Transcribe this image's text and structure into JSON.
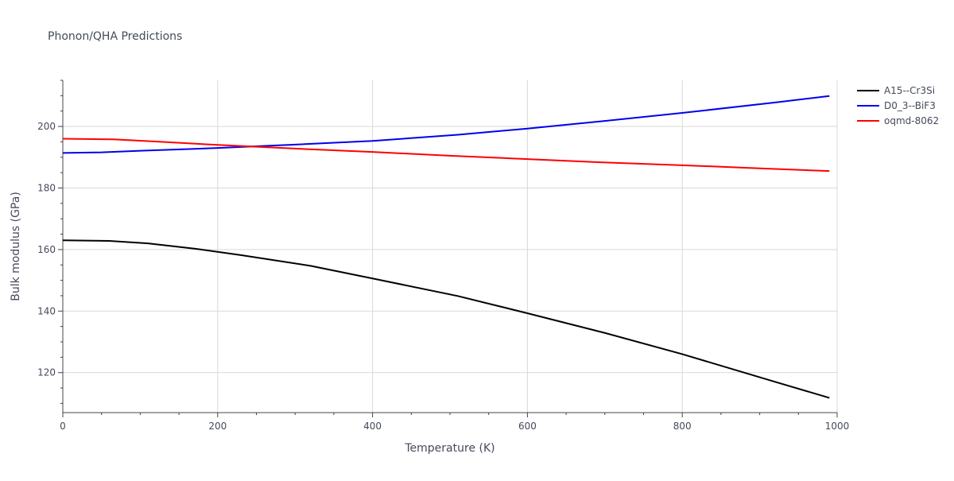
{
  "chart_data": {
    "type": "line",
    "title": "Phonon/QHA Predictions",
    "xlabel": "Temperature (K)",
    "ylabel": "Bulk modulus (GPa)",
    "xlim": [
      0,
      1000
    ],
    "ylim": [
      107,
      215
    ],
    "xticks": [
      0,
      200,
      400,
      600,
      800,
      1000
    ],
    "yticks": [
      120,
      140,
      160,
      180,
      200
    ],
    "xtick_labels": [
      "0",
      "200",
      "400",
      "600",
      "800",
      "1000"
    ],
    "ytick_labels": [
      "120",
      "140",
      "160",
      "180",
      "200"
    ],
    "grid": true,
    "legend_position": "top-right outside",
    "series": [
      {
        "name": "A15--Cr3Si",
        "color": "#000000",
        "x": [
          0,
          60,
          110,
          170,
          230,
          320,
          400,
          510,
          600,
          700,
          800,
          920,
          990
        ],
        "y": [
          163.0,
          162.8,
          162.0,
          160.3,
          158.2,
          154.7,
          150.6,
          144.9,
          139.3,
          132.9,
          126.0,
          117.0,
          111.8
        ]
      },
      {
        "name": "D0_3--BiF3",
        "color": "#0000ee",
        "x": [
          0,
          50,
          100,
          200,
          300,
          400,
          510,
          600,
          700,
          800,
          920,
          990
        ],
        "y": [
          191.4,
          191.6,
          192.1,
          193.0,
          194.1,
          195.3,
          197.3,
          199.3,
          201.8,
          204.4,
          207.8,
          209.9
        ]
      },
      {
        "name": "oqmd-8062",
        "color": "#ff0000",
        "x": [
          0,
          65,
          120,
          200,
          300,
          400,
          500,
          600,
          700,
          800,
          900,
          990
        ],
        "y": [
          196.0,
          195.8,
          195.1,
          194.0,
          192.8,
          191.7,
          190.5,
          189.4,
          188.3,
          187.4,
          186.4,
          185.5
        ]
      }
    ]
  }
}
